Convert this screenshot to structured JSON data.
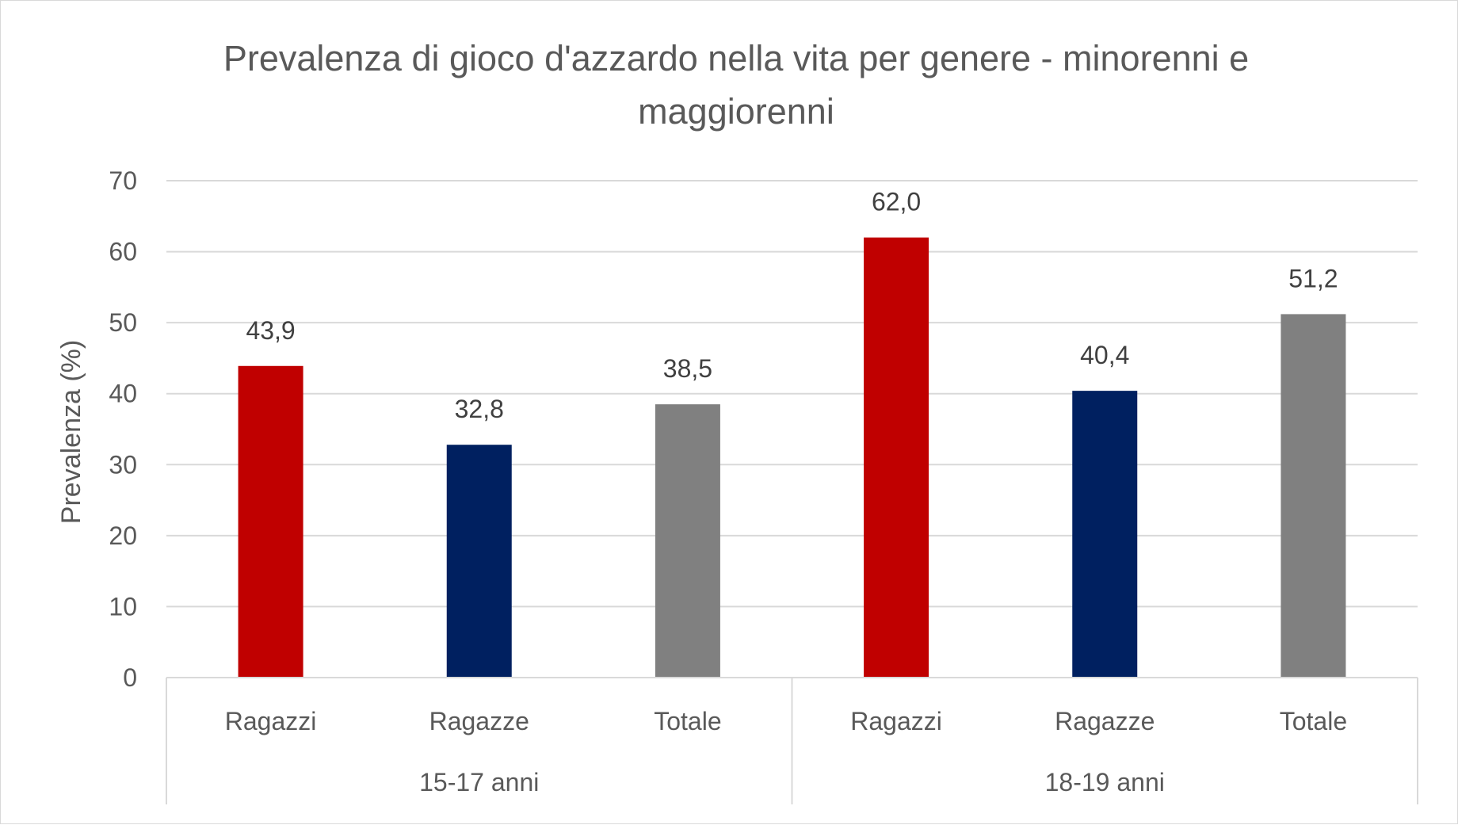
{
  "chart_data": {
    "type": "bar",
    "title_lines": [
      "Prevalenza di gioco d'azzardo nella vita per genere - minorenni e",
      "maggiorenni"
    ],
    "ylabel": "Prevalenza (%)",
    "xlabel": "",
    "ylim": [
      0,
      70
    ],
    "y_ticks": [
      "0",
      "10",
      "20",
      "30",
      "40",
      "50",
      "60",
      "70"
    ],
    "y_tick_values": [
      0,
      10,
      20,
      30,
      40,
      50,
      60,
      70
    ],
    "grid": true,
    "legend": "none",
    "groups": [
      {
        "label": "15-17 anni",
        "bars": [
          {
            "category": "Ragazzi",
            "value": 43.9,
            "value_label": "43,9",
            "color": "#c00000"
          },
          {
            "category": "Ragazze",
            "value": 32.8,
            "value_label": "32,8",
            "color": "#002060"
          },
          {
            "category": "Totale",
            "value": 38.5,
            "value_label": "38,5",
            "color": "#808080"
          }
        ]
      },
      {
        "label": "18-19 anni",
        "bars": [
          {
            "category": "Ragazzi",
            "value": 62.0,
            "value_label": "62,0",
            "color": "#c00000"
          },
          {
            "category": "Ragazze",
            "value": 40.4,
            "value_label": "40,4",
            "color": "#002060"
          },
          {
            "category": "Totale",
            "value": 51.2,
            "value_label": "51,2",
            "color": "#808080"
          }
        ]
      }
    ]
  }
}
